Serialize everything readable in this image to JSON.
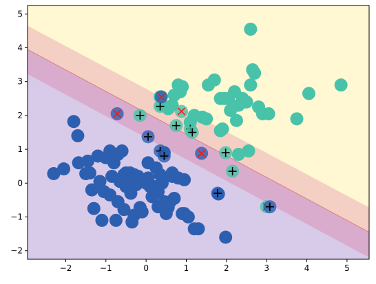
{
  "chart_data": {
    "type": "scatter",
    "title": "",
    "xlabel": "",
    "ylabel": "",
    "xlim": [
      -2.95,
      5.55
    ],
    "ylim": [
      -2.25,
      5.25
    ],
    "xticks": [
      -2,
      -1,
      0,
      1,
      2,
      3,
      4,
      5
    ],
    "yticks": [
      -2,
      -1,
      0,
      1,
      2,
      3,
      4,
      5
    ],
    "grid": false,
    "legend": "none",
    "regions": [
      {
        "class": "class-0",
        "color": "#d8cae9",
        "boundary": {
          "x1": -2.95,
          "y1": 3.22,
          "x2": 5.55,
          "y2": -2.2
        }
      },
      {
        "class": "margin",
        "color": "#f3d0c3"
      },
      {
        "class": "class-1",
        "color": "#fff8d2",
        "boundary": {
          "x1": -2.95,
          "y1": 4.65,
          "x2": 5.55,
          "y2": -0.72
        }
      }
    ],
    "margin_band": {
      "color": "#d9acce",
      "upper": {
        "x1": -2.95,
        "y1": 3.95,
        "x2": 5.55,
        "y2": -1.45
      },
      "lower": {
        "x1": -2.95,
        "y1": 3.22,
        "x2": 5.55,
        "y2": -2.2
      }
    },
    "contour_line": {
      "color": "#d9807f",
      "x1": -2.95,
      "y1": 3.95,
      "x2": 5.55,
      "y2": -1.45
    },
    "series": [
      {
        "class": "class-0",
        "color": "#2d5fb0",
        "x": [
          -2.3,
          -2.05,
          -1.8,
          -1.7,
          -1.68,
          -1.5,
          -1.45,
          -1.35,
          -1.3,
          -1.15,
          -1.1,
          -1.05,
          -1.0,
          -0.9,
          -0.85,
          -0.8,
          -0.75,
          -0.7,
          -0.65,
          -0.6,
          -0.55,
          -0.5,
          -0.5,
          -0.45,
          -0.4,
          -0.38,
          -0.35,
          -0.3,
          -0.25,
          -0.2,
          -0.15,
          -0.1,
          -0.05,
          0.0,
          0.05,
          0.1,
          0.15,
          0.2,
          0.25,
          0.3,
          0.35,
          0.4,
          0.45,
          0.5,
          0.55,
          0.6,
          0.65,
          0.7,
          0.8,
          0.9,
          0.95,
          1.05,
          1.2,
          1.3,
          1.8,
          1.98,
          -1.4,
          -1.2,
          -0.9,
          -0.7,
          -0.4,
          -0.3,
          0.05,
          0.3,
          0.45,
          -0.55,
          -0.2,
          0.65,
          0.95
        ],
        "y": [
          0.28,
          0.42,
          1.82,
          1.4,
          0.6,
          0.28,
          0.65,
          -0.2,
          -0.75,
          0.05,
          -1.1,
          -0.25,
          0.75,
          -0.35,
          0.2,
          0.6,
          -1.1,
          0.85,
          0.05,
          0.95,
          -0.78,
          -0.1,
          0.3,
          0.1,
          0.3,
          -0.3,
          -1.15,
          -0.95,
          -0.05,
          0.2,
          -0.72,
          -0.85,
          0.1,
          0.0,
          0.15,
          -0.1,
          -0.4,
          -0.1,
          0.45,
          -0.7,
          0.25,
          0.0,
          -0.55,
          -0.9,
          -0.72,
          -0.55,
          0.3,
          -0.45,
          0.15,
          -0.9,
          -0.9,
          -1.0,
          -1.35,
          -1.35,
          -0.32,
          -1.6,
          0.3,
          0.8,
          0.95,
          -0.55,
          0.15,
          0.25,
          0.6,
          -0.25,
          0.9,
          0.25,
          0.1,
          0.2,
          0.1
        ]
      },
      {
        "class": "class-1",
        "color": "#48c3a9",
        "x": [
          2.6,
          1.55,
          1.7,
          1.85,
          1.9,
          2.05,
          2.1,
          2.2,
          2.3,
          2.4,
          2.45,
          2.5,
          2.6,
          2.65,
          2.7,
          2.8,
          2.9,
          3.05,
          3.75,
          4.05,
          4.85,
          0.35,
          0.55,
          0.65,
          0.7,
          0.8,
          0.9,
          1.1,
          1.2,
          1.4,
          1.5,
          2.25,
          2.3,
          2.55,
          1.95,
          1.85,
          0.4,
          0.85
        ],
        "y": [
          4.55,
          2.9,
          3.05,
          1.55,
          1.6,
          2.5,
          2.15,
          2.7,
          2.3,
          2.5,
          2.4,
          2.4,
          2.9,
          3.35,
          3.25,
          2.25,
          2.05,
          2.05,
          1.9,
          2.65,
          2.9,
          2.55,
          2.2,
          2.3,
          2.6,
          2.9,
          2.85,
          1.8,
          2.0,
          1.95,
          1.9,
          1.85,
          0.85,
          0.95,
          2.5,
          2.5,
          2.3,
          2.7
        ]
      }
    ],
    "support_vectors": [
      {
        "x": -0.72,
        "y": 2.05,
        "class": "class-0",
        "mark": "x"
      },
      {
        "x": -0.15,
        "y": 2.0,
        "class": "class-1",
        "mark": "+"
      },
      {
        "x": 0.05,
        "y": 1.37,
        "class": "class-0",
        "mark": "+"
      },
      {
        "x": 0.35,
        "y": 2.27,
        "class": "class-1",
        "mark": "+"
      },
      {
        "x": 0.38,
        "y": 2.55,
        "class": "class-0",
        "mark": "x"
      },
      {
        "x": 0.35,
        "y": 0.95,
        "class": "class-0",
        "mark": "+"
      },
      {
        "x": 0.45,
        "y": 0.8,
        "class": "class-0",
        "mark": "+"
      },
      {
        "x": 0.75,
        "y": 1.7,
        "class": "class-1",
        "mark": "+"
      },
      {
        "x": 0.88,
        "y": 2.12,
        "class": "class-1",
        "mark": "x"
      },
      {
        "x": 1.1,
        "y": 1.6,
        "class": "class-1",
        "mark": "+"
      },
      {
        "x": 1.15,
        "y": 1.5,
        "class": "class-1",
        "mark": "+"
      },
      {
        "x": 1.38,
        "y": 0.88,
        "class": "class-0",
        "mark": "x"
      },
      {
        "x": 1.78,
        "y": -0.3,
        "class": "class-0",
        "mark": "+"
      },
      {
        "x": 1.98,
        "y": 0.9,
        "class": "class-1",
        "mark": "+"
      },
      {
        "x": 2.15,
        "y": 0.35,
        "class": "class-1",
        "mark": "+"
      },
      {
        "x": 3.0,
        "y": -0.7,
        "class": "class-1",
        "mark": "x"
      },
      {
        "x": 3.08,
        "y": -0.7,
        "class": "class-0",
        "mark": "+"
      }
    ],
    "marker_colors": {
      "x": "#e02020",
      "+": "#000000"
    }
  }
}
